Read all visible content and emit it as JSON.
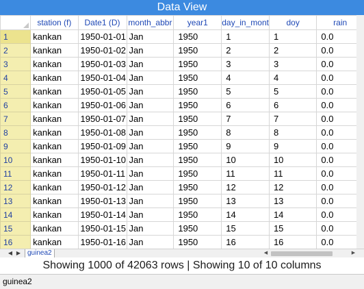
{
  "window": {
    "title": "Data View"
  },
  "table": {
    "columns": [
      "station (f)",
      "Date1 (D)",
      "month_abbr",
      "year1",
      "day_in_mont",
      "doy",
      "rain"
    ],
    "rows": [
      [
        "1",
        "kankan",
        "1950-01-01",
        "Jan",
        "1950",
        "1",
        "1",
        "0.0"
      ],
      [
        "2",
        "kankan",
        "1950-01-02",
        "Jan",
        "1950",
        "2",
        "2",
        "0.0"
      ],
      [
        "3",
        "kankan",
        "1950-01-03",
        "Jan",
        "1950",
        "3",
        "3",
        "0.0"
      ],
      [
        "4",
        "kankan",
        "1950-01-04",
        "Jan",
        "1950",
        "4",
        "4",
        "0.0"
      ],
      [
        "5",
        "kankan",
        "1950-01-05",
        "Jan",
        "1950",
        "5",
        "5",
        "0.0"
      ],
      [
        "6",
        "kankan",
        "1950-01-06",
        "Jan",
        "1950",
        "6",
        "6",
        "0.0"
      ],
      [
        "7",
        "kankan",
        "1950-01-07",
        "Jan",
        "1950",
        "7",
        "7",
        "0.0"
      ],
      [
        "8",
        "kankan",
        "1950-01-08",
        "Jan",
        "1950",
        "8",
        "8",
        "0.0"
      ],
      [
        "9",
        "kankan",
        "1950-01-09",
        "Jan",
        "1950",
        "9",
        "9",
        "0.0"
      ],
      [
        "10",
        "kankan",
        "1950-01-10",
        "Jan",
        "1950",
        "10",
        "10",
        "0.0"
      ],
      [
        "11",
        "kankan",
        "1950-01-11",
        "Jan",
        "1950",
        "11",
        "11",
        "0.0"
      ],
      [
        "12",
        "kankan",
        "1950-01-12",
        "Jan",
        "1950",
        "12",
        "12",
        "0.0"
      ],
      [
        "13",
        "kankan",
        "1950-01-13",
        "Jan",
        "1950",
        "13",
        "13",
        "0.0"
      ],
      [
        "14",
        "kankan",
        "1950-01-14",
        "Jan",
        "1950",
        "14",
        "14",
        "0.0"
      ],
      [
        "15",
        "kankan",
        "1950-01-15",
        "Jan",
        "1950",
        "15",
        "15",
        "0.0"
      ],
      [
        "16",
        "kankan",
        "1950-01-16",
        "Jan",
        "1950",
        "16",
        "16",
        "0.0"
      ]
    ]
  },
  "sheet_tabs": [
    "guinea2"
  ],
  "status": {
    "text": "Showing 1000 of 42063 rows | Showing 10 of 10 columns"
  },
  "footer": {
    "label": "guinea2"
  },
  "colors": {
    "title_bar": "#3c8ae0",
    "header_text": "#1e48b5",
    "row_header_bg": "#f4eeb0"
  }
}
